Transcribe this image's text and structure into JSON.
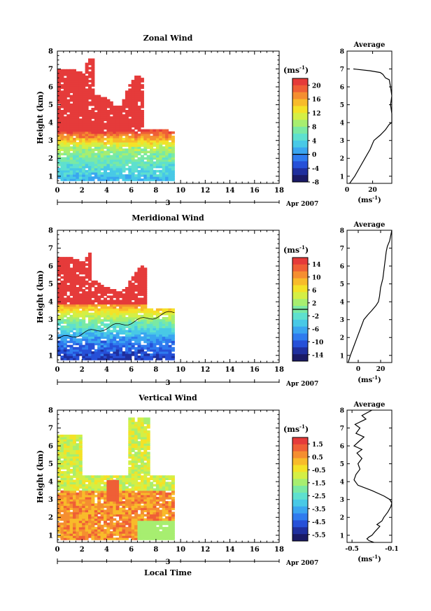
{
  "figure": {
    "xlabel_bottom": "Local Time",
    "date_label": "Apr 2007",
    "date_day": "3",
    "units_label": "(ms",
    "units_exp": "-1",
    "units_close": ")",
    "avg_xlabel": "(ms",
    "avg_xlabel_close": ")"
  },
  "colors": {
    "scale": [
      "#1a1a66",
      "#1f2f9e",
      "#2650d8",
      "#2f7bef",
      "#3aa5f0",
      "#48c9e6",
      "#5ee0cf",
      "#7ae9a4",
      "#a7ee70",
      "#d4ef45",
      "#f4e227",
      "#f8bb2a",
      "#f58e30",
      "#ef5f36",
      "#e53b3a"
    ]
  },
  "chart_data": [
    {
      "type": "heatmap",
      "title": "Zonal Wind",
      "xlabel": "",
      "ylabel": "Height (km)",
      "xlim": [
        0,
        18
      ],
      "ylim": [
        0.6,
        8
      ],
      "xticks": [
        "0",
        "2",
        "4",
        "6",
        "8",
        "10",
        "12",
        "14",
        "16",
        "18"
      ],
      "yticks": [
        "1",
        "2",
        "3",
        "4",
        "5",
        "6",
        "7",
        "8"
      ],
      "colorbar": {
        "range": [
          -8,
          22
        ],
        "tick_labels": [
          "20",
          "16",
          "12",
          "8",
          "4",
          "0",
          "-4",
          "-8"
        ],
        "tick_values": [
          20,
          16,
          12,
          8,
          4,
          0,
          -4,
          -8
        ],
        "zero_line": 0
      },
      "data_extent_hours": [
        0,
        9.5
      ],
      "average": {
        "title": "Average",
        "xlim": [
          0,
          35
        ],
        "xticks": [
          "0",
          "20"
        ],
        "xtick_values": [
          0,
          20
        ],
        "profile": [
          [
            2,
            0.6
          ],
          [
            6,
            1.0
          ],
          [
            10,
            1.5
          ],
          [
            14,
            2.0
          ],
          [
            18,
            2.5
          ],
          [
            21,
            3.0
          ],
          [
            26,
            3.3
          ],
          [
            30,
            3.6
          ],
          [
            33,
            3.9
          ],
          [
            35,
            4.0
          ],
          [
            35,
            4.5
          ],
          [
            34,
            5.0
          ],
          [
            35,
            5.5
          ],
          [
            34,
            6.0
          ],
          [
            33,
            6.4
          ],
          [
            30,
            6.5
          ],
          [
            28,
            6.7
          ],
          [
            26,
            6.8
          ],
          [
            18,
            6.9
          ],
          [
            5,
            7.0
          ]
        ]
      }
    },
    {
      "type": "heatmap",
      "title": "Meridional Wind",
      "xlabel": "",
      "ylabel": "Height (km)",
      "xlim": [
        0,
        18
      ],
      "ylim": [
        0.6,
        8
      ],
      "xticks": [
        "0",
        "2",
        "4",
        "6",
        "8",
        "10",
        "12",
        "14",
        "16",
        "18"
      ],
      "yticks": [
        "1",
        "2",
        "3",
        "4",
        "5",
        "6",
        "7",
        "8"
      ],
      "colorbar": {
        "range": [
          -16,
          16
        ],
        "tick_labels": [
          "14",
          "10",
          "6",
          "2",
          "-2",
          "-6",
          "-10",
          "-14"
        ],
        "tick_values": [
          14,
          10,
          6,
          2,
          -2,
          -6,
          -10,
          -14
        ],
        "zero_line": 0
      },
      "data_extent_hours": [
        0,
        9.5
      ],
      "average": {
        "title": "Average",
        "xlim": [
          -10,
          30
        ],
        "xticks": [
          "0",
          "20"
        ],
        "xtick_values": [
          0,
          20
        ],
        "profile": [
          [
            -9,
            0.6
          ],
          [
            -7,
            1.0
          ],
          [
            -4,
            1.5
          ],
          [
            -1,
            2.0
          ],
          [
            2,
            2.5
          ],
          [
            5,
            3.0
          ],
          [
            9,
            3.3
          ],
          [
            12,
            3.5
          ],
          [
            16,
            3.8
          ],
          [
            18,
            4.0
          ],
          [
            19,
            4.3
          ],
          [
            20,
            4.8
          ],
          [
            22,
            5.3
          ],
          [
            23,
            5.8
          ],
          [
            24,
            6.3
          ],
          [
            25,
            6.8
          ],
          [
            26,
            7.1
          ],
          [
            28,
            7.4
          ],
          [
            29,
            7.7
          ],
          [
            30,
            8.0
          ]
        ]
      }
    },
    {
      "type": "heatmap",
      "title": "Vertical Wind",
      "xlabel": "Local Time",
      "ylabel": "Height (km)",
      "xlim": [
        0,
        18
      ],
      "ylim": [
        0.6,
        8
      ],
      "xticks": [
        "0",
        "2",
        "4",
        "6",
        "8",
        "10",
        "12",
        "14",
        "16",
        "18"
      ],
      "yticks": [
        "1",
        "2",
        "3",
        "4",
        "5",
        "6",
        "7",
        "8"
      ],
      "colorbar": {
        "range": [
          -6.0,
          2.0
        ],
        "tick_labels": [
          "1.5",
          "0.5",
          "-0.5",
          "-1.5",
          "-2.5",
          "-3.5",
          "-4.5",
          "-5.5"
        ],
        "tick_values": [
          1.5,
          0.5,
          -0.5,
          -1.5,
          -2.5,
          -3.5,
          -4.5,
          -5.5
        ]
      },
      "data_extent_hours": [
        0,
        9.5
      ],
      "average": {
        "title": "Average",
        "xlim": [
          -0.55,
          -0.1
        ],
        "xticks": [
          "-0.5",
          "-0.1"
        ],
        "xtick_values": [
          -0.5,
          -0.1
        ],
        "profile": [
          [
            -0.28,
            0.6
          ],
          [
            -0.33,
            0.7
          ],
          [
            -0.35,
            0.8
          ],
          [
            -0.33,
            0.9
          ],
          [
            -0.3,
            1.0
          ],
          [
            -0.27,
            1.2
          ],
          [
            -0.22,
            1.5
          ],
          [
            -0.25,
            1.6
          ],
          [
            -0.2,
            1.8
          ],
          [
            -0.18,
            2.0
          ],
          [
            -0.14,
            2.3
          ],
          [
            -0.11,
            2.6
          ],
          [
            -0.1,
            2.8
          ],
          [
            -0.12,
            3.0
          ],
          [
            -0.18,
            3.2
          ],
          [
            -0.3,
            3.5
          ],
          [
            -0.44,
            3.8
          ],
          [
            -0.48,
            4.1
          ],
          [
            -0.46,
            4.4
          ],
          [
            -0.42,
            4.7
          ],
          [
            -0.44,
            5.0
          ],
          [
            -0.4,
            5.3
          ],
          [
            -0.45,
            5.6
          ],
          [
            -0.4,
            5.8
          ],
          [
            -0.48,
            6.0
          ],
          [
            -0.44,
            6.2
          ],
          [
            -0.38,
            6.5
          ],
          [
            -0.46,
            6.7
          ],
          [
            -0.42,
            7.0
          ],
          [
            -0.47,
            7.2
          ],
          [
            -0.36,
            7.5
          ],
          [
            -0.4,
            7.7
          ],
          [
            -0.3,
            8.0
          ]
        ]
      }
    }
  ]
}
